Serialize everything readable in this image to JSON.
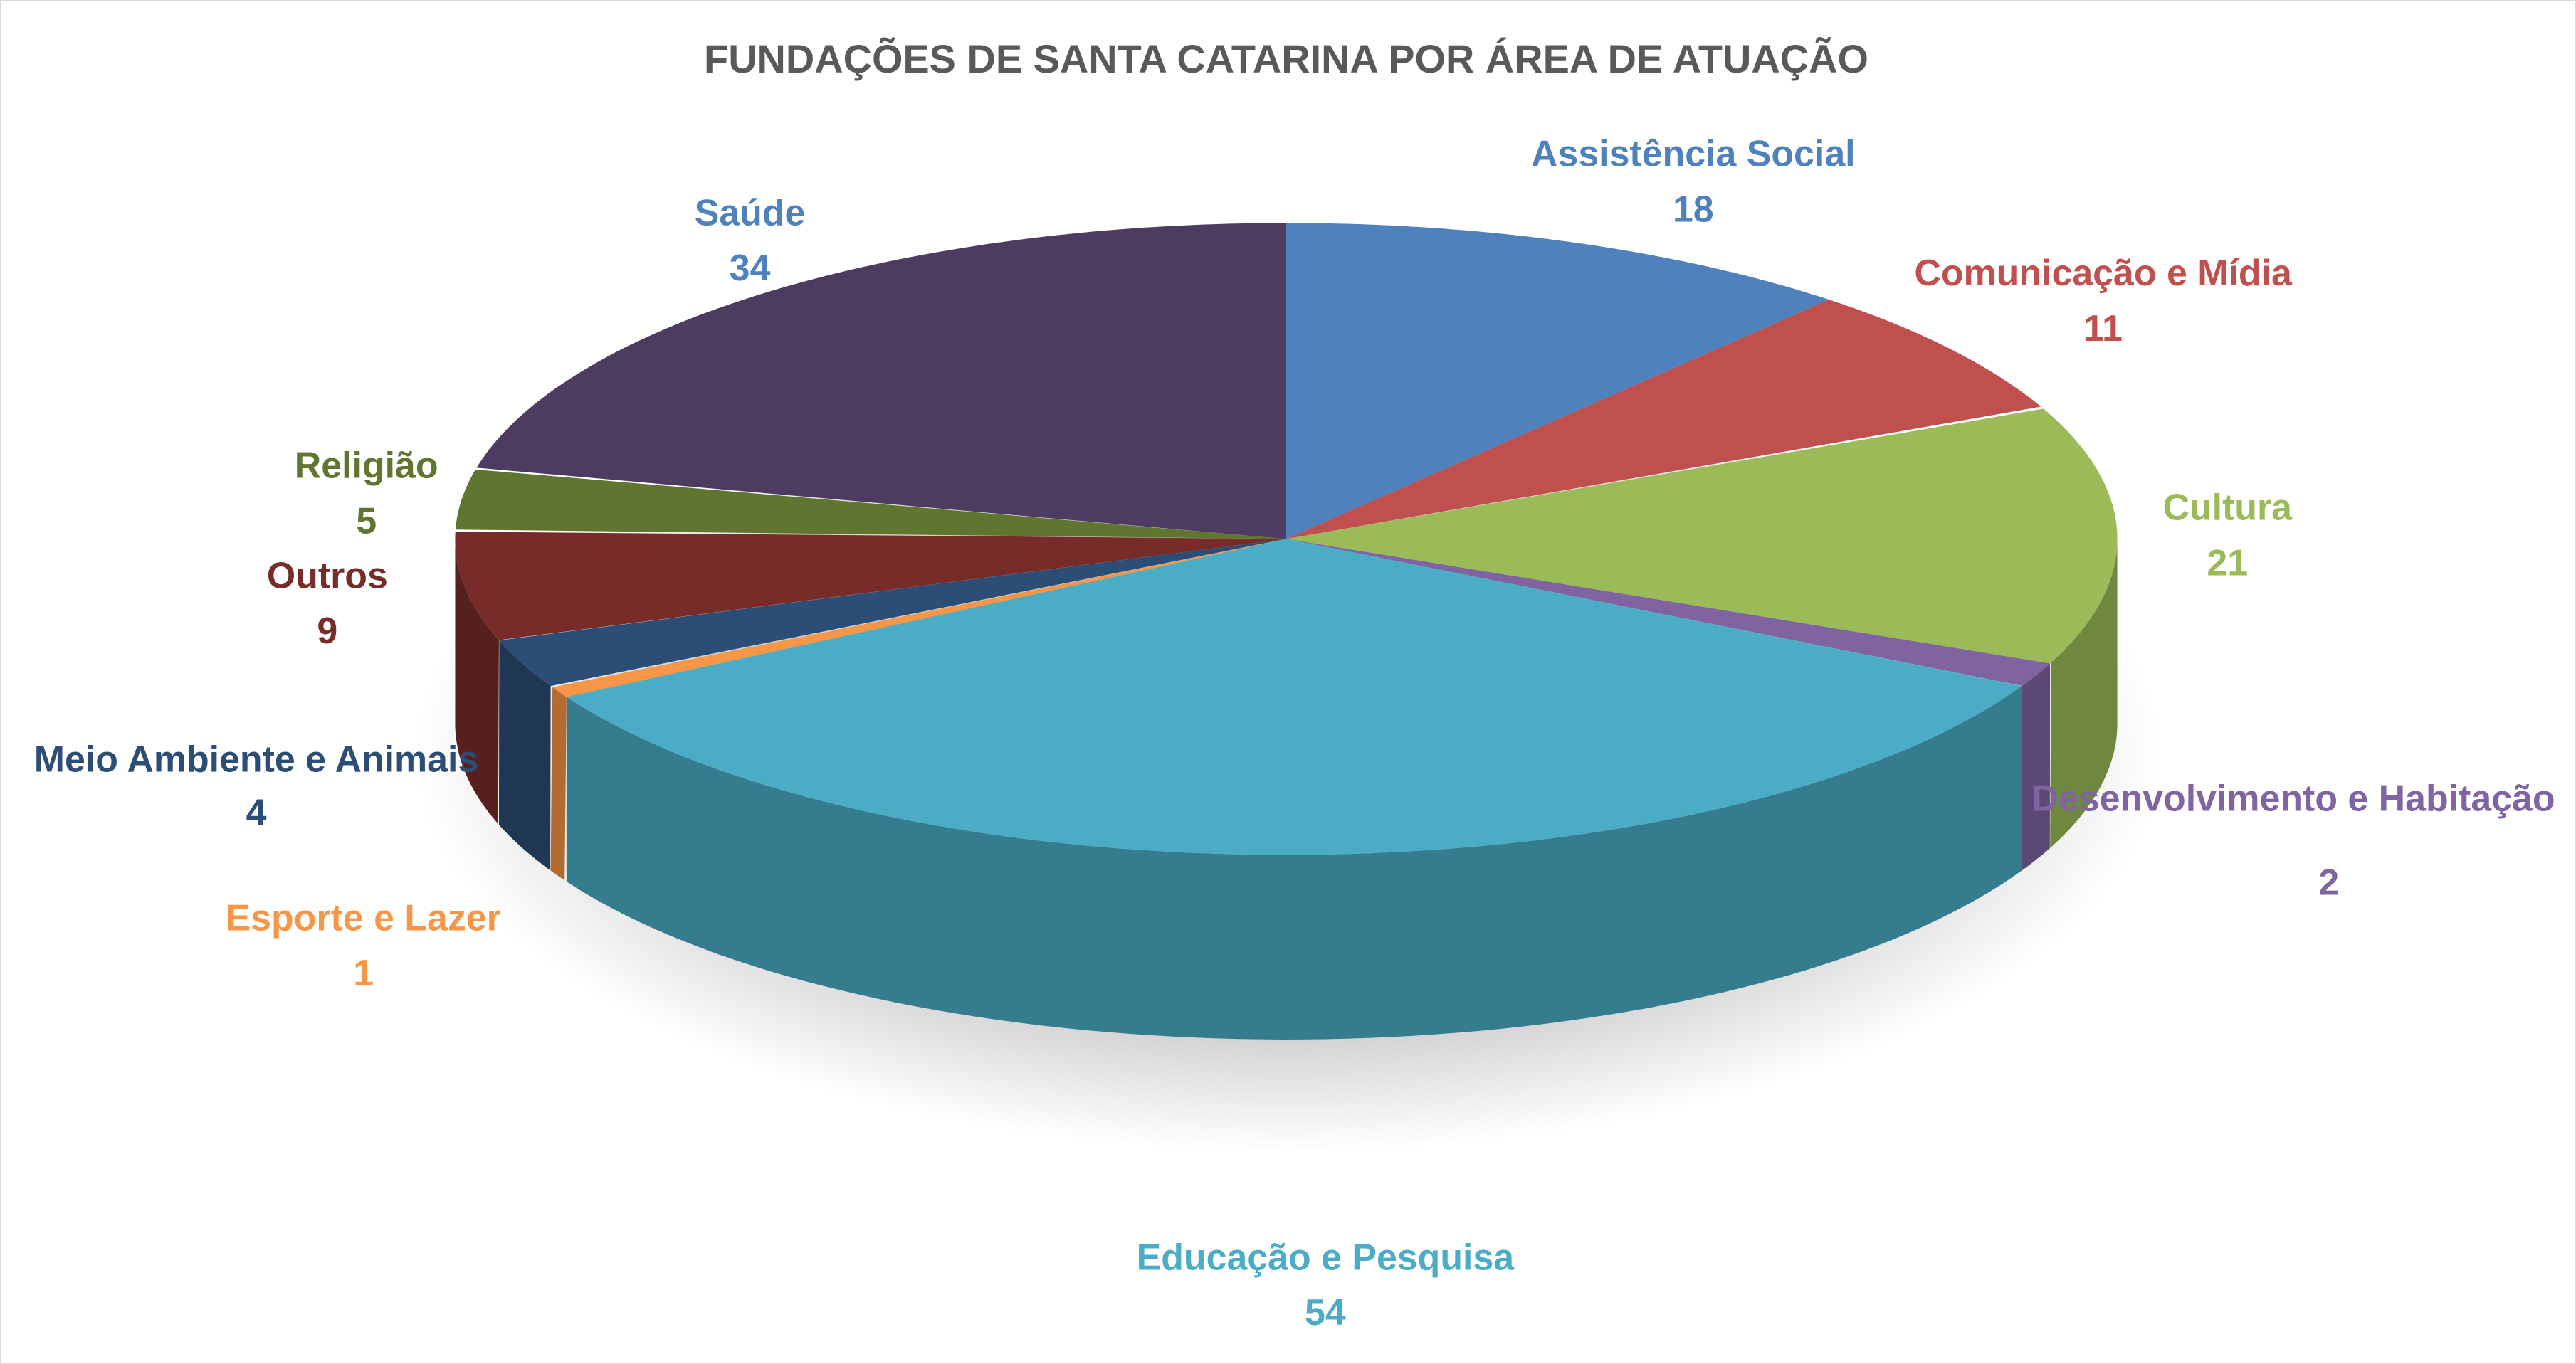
{
  "chart_data": {
    "type": "pie",
    "title": "FUNDAÇÕES DE SANTA CATARINA POR ÁREA DE ATUAÇÃO",
    "categories": [
      "Assistência Social",
      "Comunicação e Mídia",
      "Cultura",
      "Desenvolvimento e Habitação",
      "Educação e Pesquisa",
      "Esporte e Lazer",
      "Meio Ambiente e Animais",
      "Outros",
      "Religião",
      "Saúde"
    ],
    "values": [
      18,
      11,
      21,
      2,
      54,
      1,
      4,
      9,
      5,
      34
    ],
    "value_labels": [
      "18",
      "11",
      "21",
      "2",
      "54",
      "1",
      "4",
      "9",
      "5",
      "34"
    ],
    "colors": [
      "#4F81BD",
      "#C0504D",
      "#9BBB59",
      "#8064A2",
      "#4BACC6",
      "#F79646",
      "#2C4D75",
      "#772C2A",
      "#5F7530",
      "#4D3B62"
    ],
    "label_colors": [
      "#4F81BD",
      "#C0504D",
      "#9BBB59",
      "#8064A2",
      "#4BACC6",
      "#F79646",
      "#2C4D75",
      "#772C2A",
      "#5F7530",
      "#4F81BD"
    ],
    "style": "3d-pie",
    "legend": "none"
  }
}
